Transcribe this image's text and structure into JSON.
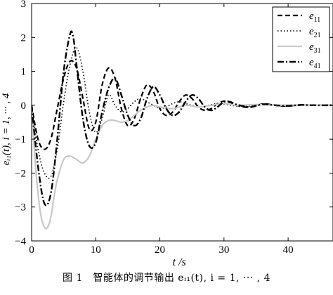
{
  "caption": "图 1　智能体的调节输出 eᵢ₁(t), i = 1, ··· , 4",
  "chart_data": {
    "type": "line",
    "xlabel": "t /s",
    "ylabel": "eᵢ₁(t), i = 1, ··· , 4",
    "xlim": [
      0,
      47
    ],
    "ylim": [
      -4,
      3
    ],
    "xticks": [
      0,
      10,
      20,
      30,
      40
    ],
    "yticks": [
      -4,
      -3,
      -2,
      -1,
      0,
      1,
      2,
      3
    ],
    "grid": false,
    "legend_position": "top-right",
    "series": [
      {
        "name": "e11",
        "base": "e",
        "sub": "11",
        "color": "#000000",
        "dash": "7,4",
        "width": 2.2,
        "x": [
          0,
          1,
          2,
          3,
          4,
          5,
          6,
          7,
          8,
          9,
          10,
          11,
          12,
          13,
          14,
          15,
          16,
          17,
          18,
          19,
          20,
          21,
          22,
          23,
          24,
          25,
          26,
          27,
          28,
          29,
          30,
          31,
          32,
          33,
          34,
          35,
          36,
          37,
          38,
          39,
          40,
          42,
          44,
          47
        ],
        "y": [
          0,
          -1.0,
          -1.3,
          -1.0,
          -0.1,
          0.8,
          1.3,
          1.1,
          0.2,
          -0.7,
          -0.5,
          0.6,
          1.1,
          0.8,
          -0.1,
          -0.6,
          -0.4,
          0.2,
          0.6,
          0.4,
          -0.1,
          -0.3,
          -0.2,
          0.1,
          0.3,
          0.2,
          -0.05,
          -0.15,
          -0.1,
          0.05,
          0.12,
          0.08,
          0,
          -0.05,
          -0.06,
          -0.02,
          0.04,
          0.03,
          0,
          -0.02,
          -0.02,
          0.01,
          0,
          0
        ]
      },
      {
        "name": "e21",
        "base": "e",
        "sub": "21",
        "color": "#000000",
        "dash": "1.5,3",
        "width": 1.6,
        "x": [
          0,
          1,
          2,
          3,
          4,
          5,
          6,
          7,
          8,
          9,
          10,
          11,
          12,
          13,
          14,
          15,
          16,
          17,
          18,
          19,
          20,
          21,
          22,
          23,
          24,
          25,
          26,
          27,
          28,
          29,
          30,
          31,
          32,
          34,
          36,
          38,
          40,
          42,
          44,
          47
        ],
        "y": [
          0,
          -1.3,
          -2.0,
          -2.1,
          -1.3,
          0.1,
          1.2,
          1.7,
          1.0,
          -0.2,
          -0.8,
          -0.4,
          0.3,
          0.0,
          -0.2,
          -0.1,
          0.1,
          0.2,
          0.1,
          0.0,
          -0.1,
          -0.05,
          0.05,
          0.1,
          0.05,
          0.0,
          -0.05,
          -0.03,
          0.02,
          0.05,
          0.03,
          0.0,
          -0.02,
          -0.03,
          0.02,
          0.0,
          -0.02,
          0.01,
          0,
          0
        ]
      },
      {
        "name": "e31",
        "base": "e",
        "sub": "31",
        "color": "#c8c8c8",
        "dash": "",
        "width": 2.2,
        "x": [
          0,
          0.5,
          1,
          1.5,
          2,
          2.5,
          3,
          3.5,
          4,
          5,
          6,
          7,
          8,
          9,
          10,
          11,
          12,
          13,
          14,
          15,
          16,
          17,
          18,
          19,
          20,
          22,
          24,
          26,
          28,
          30,
          32,
          35,
          38,
          41,
          44,
          47
        ],
        "y": [
          0,
          -1.5,
          -2.6,
          -3.3,
          -3.6,
          -3.6,
          -3.3,
          -2.7,
          -2.2,
          -1.6,
          -1.5,
          -1.6,
          -1.7,
          -1.5,
          -1.0,
          -0.6,
          -0.45,
          -0.45,
          -0.5,
          -0.45,
          -0.3,
          -0.15,
          -0.05,
          0.0,
          -0.05,
          -0.1,
          0.0,
          -0.05,
          0.0,
          0.05,
          0.0,
          0.02,
          0.0,
          0.01,
          0,
          0
        ]
      },
      {
        "name": "e41",
        "base": "e",
        "sub": "41",
        "color": "#000000",
        "dash": "9,3,2,3",
        "width": 2.4,
        "x": [
          0,
          1,
          2,
          3,
          4,
          5,
          6,
          6.5,
          7,
          8,
          9,
          10,
          11,
          12,
          13,
          14,
          15,
          16,
          17,
          18,
          19,
          20,
          21,
          22,
          23,
          24,
          25,
          26,
          27,
          28,
          29,
          30,
          31,
          32,
          34,
          36,
          38,
          40,
          42,
          44,
          47
        ],
        "y": [
          0,
          -1.8,
          -2.9,
          -2.6,
          -1.0,
          1.0,
          2.1,
          2.0,
          1.2,
          -0.4,
          -1.2,
          -1.1,
          -0.2,
          0.5,
          0.8,
          0.3,
          -0.3,
          -0.6,
          -0.4,
          0.2,
          0.55,
          0.3,
          -0.1,
          -0.3,
          -0.2,
          0.1,
          0.3,
          0.2,
          -0.05,
          -0.15,
          -0.05,
          0.1,
          0.1,
          0.02,
          -0.05,
          0.03,
          0.0,
          -0.02,
          0.01,
          0,
          0
        ]
      }
    ]
  }
}
